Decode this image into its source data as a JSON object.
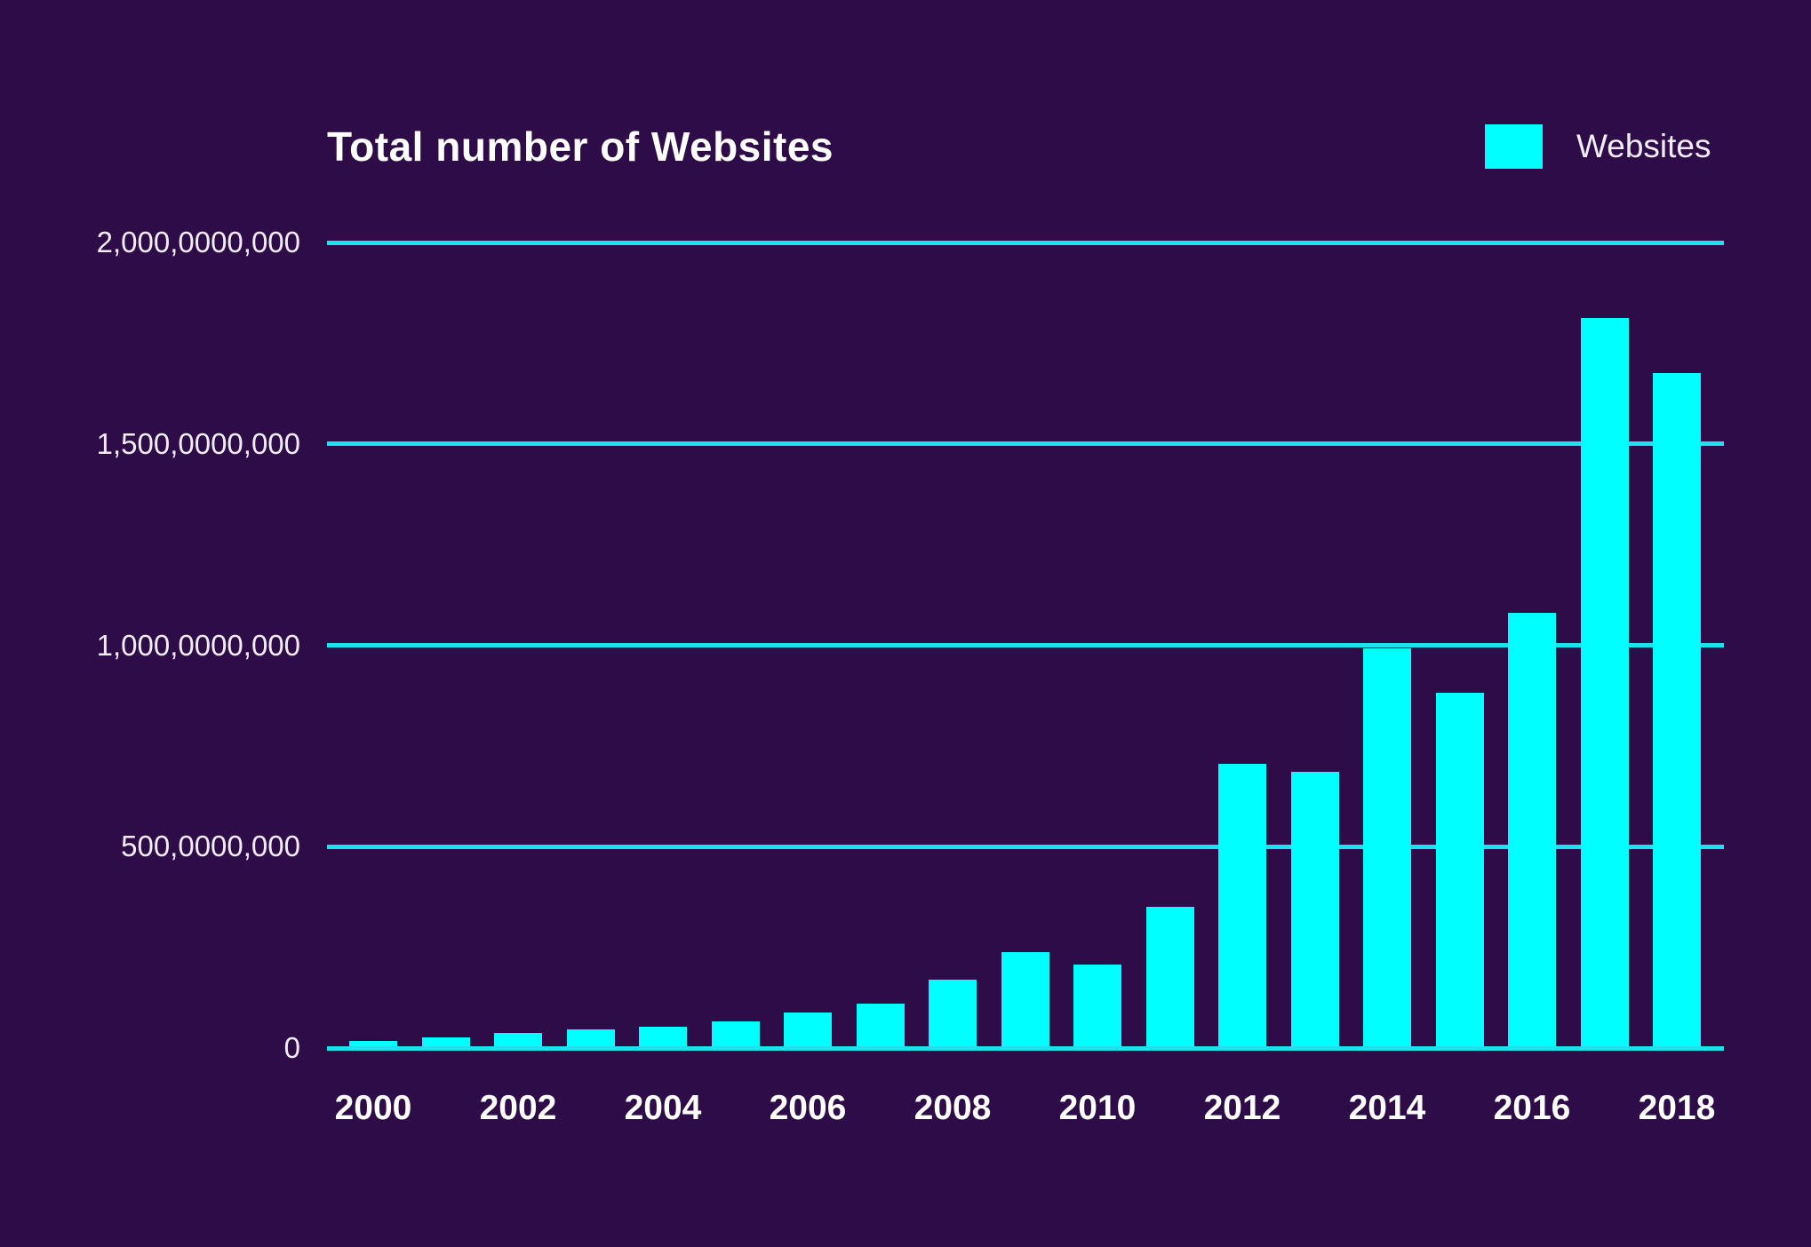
{
  "title": "Total number of Websites",
  "legend": {
    "label": "Websites",
    "swatch_color": "#00ffff"
  },
  "colors": {
    "background": "#2e0c48",
    "bar": "#00ffff",
    "gridline": "#1be2ec",
    "title_text": "#ffffff",
    "axis_text": "#f0ecf6"
  },
  "chart_data": {
    "type": "bar",
    "title": "Total number of Websites",
    "xlabel": "",
    "ylabel": "",
    "legend_entries": [
      "Websites"
    ],
    "legend_position": "top-right",
    "grid": "horizontal",
    "ylim": [
      0,
      2000000000
    ],
    "x": [
      2000,
      2001,
      2002,
      2003,
      2004,
      2005,
      2006,
      2007,
      2008,
      2009,
      2010,
      2011,
      2012,
      2013,
      2014,
      2015,
      2016,
      2017,
      2018
    ],
    "values": [
      18000000,
      27000000,
      37000000,
      47000000,
      52000000,
      67000000,
      88000000,
      110000000,
      170000000,
      238000000,
      207000000,
      350000000,
      706000000,
      686000000,
      992000000,
      882000000,
      1080000000,
      1813000000,
      1676000000
    ],
    "unit": "websites",
    "y_ticks": [
      {
        "value": 0,
        "label": "0"
      },
      {
        "value": 500000000,
        "label": "500,0000,000"
      },
      {
        "value": 1000000000,
        "label": "1,000,0000,000"
      },
      {
        "value": 1500000000,
        "label": "1,500,0000,000"
      },
      {
        "value": 2000000000,
        "label": "2,000,0000,000"
      }
    ],
    "x_tick_labels": [
      "2000",
      "2002",
      "2004",
      "2006",
      "2008",
      "2010",
      "2012",
      "2014",
      "2016",
      "2018"
    ]
  }
}
